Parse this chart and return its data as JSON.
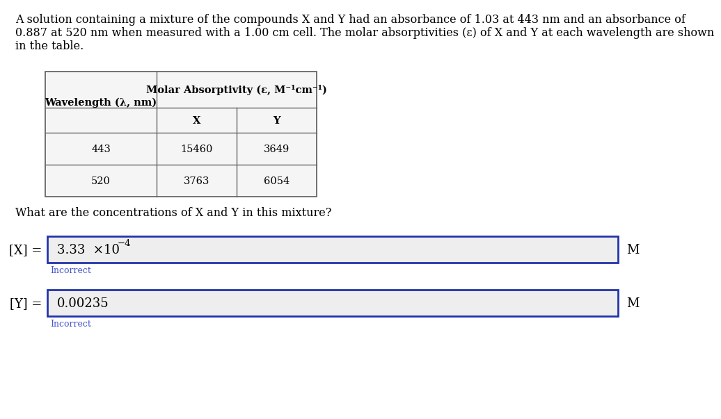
{
  "para_line1": "A solution containing a mixture of the compounds X and Y had an absorbance of 1.03 at 443 nm and an absorbance of",
  "para_line2": "0.887 at 520 nm when measured with a 1.00 cm cell. The molar absorptivities (ε) of X and Y at each wavelength are shown",
  "para_line3": "in the table.",
  "question_text": "What are the concentrations of X and Y in this mixture?",
  "table_header_col1": "Wavelength (λ, nm)",
  "table_header_main": "Molar Absorptivity (ε, M⁻¹cm⁻¹)",
  "table_sub_x": "X",
  "table_sub_y": "Y",
  "table_rows": [
    {
      "wavelength": "443",
      "x": "15460",
      "y": "3649"
    },
    {
      "wavelength": "520",
      "x": "3763",
      "y": "6054"
    }
  ],
  "input_x_label": "[X] =",
  "input_x_base": "3.33  ×10",
  "input_x_exp": "−4",
  "input_x_unit": "M",
  "input_y_label": "[Y] =",
  "input_y_value": "0.00235",
  "input_y_unit": "M",
  "incorrect_text": "Incorrect",
  "incorrect_color": "#4455cc",
  "bg_color": "#ffffff",
  "table_border_color": "#666666",
  "table_fill_color": "#f5f5f5",
  "input_border_color": "#2233aa",
  "input_bg_color": "#eeeeee",
  "text_color": "#000000",
  "font_size_body": 11.5,
  "font_size_table_header": 10.5,
  "font_size_table_data": 10.5,
  "font_size_input": 13,
  "font_size_incorrect": 9
}
